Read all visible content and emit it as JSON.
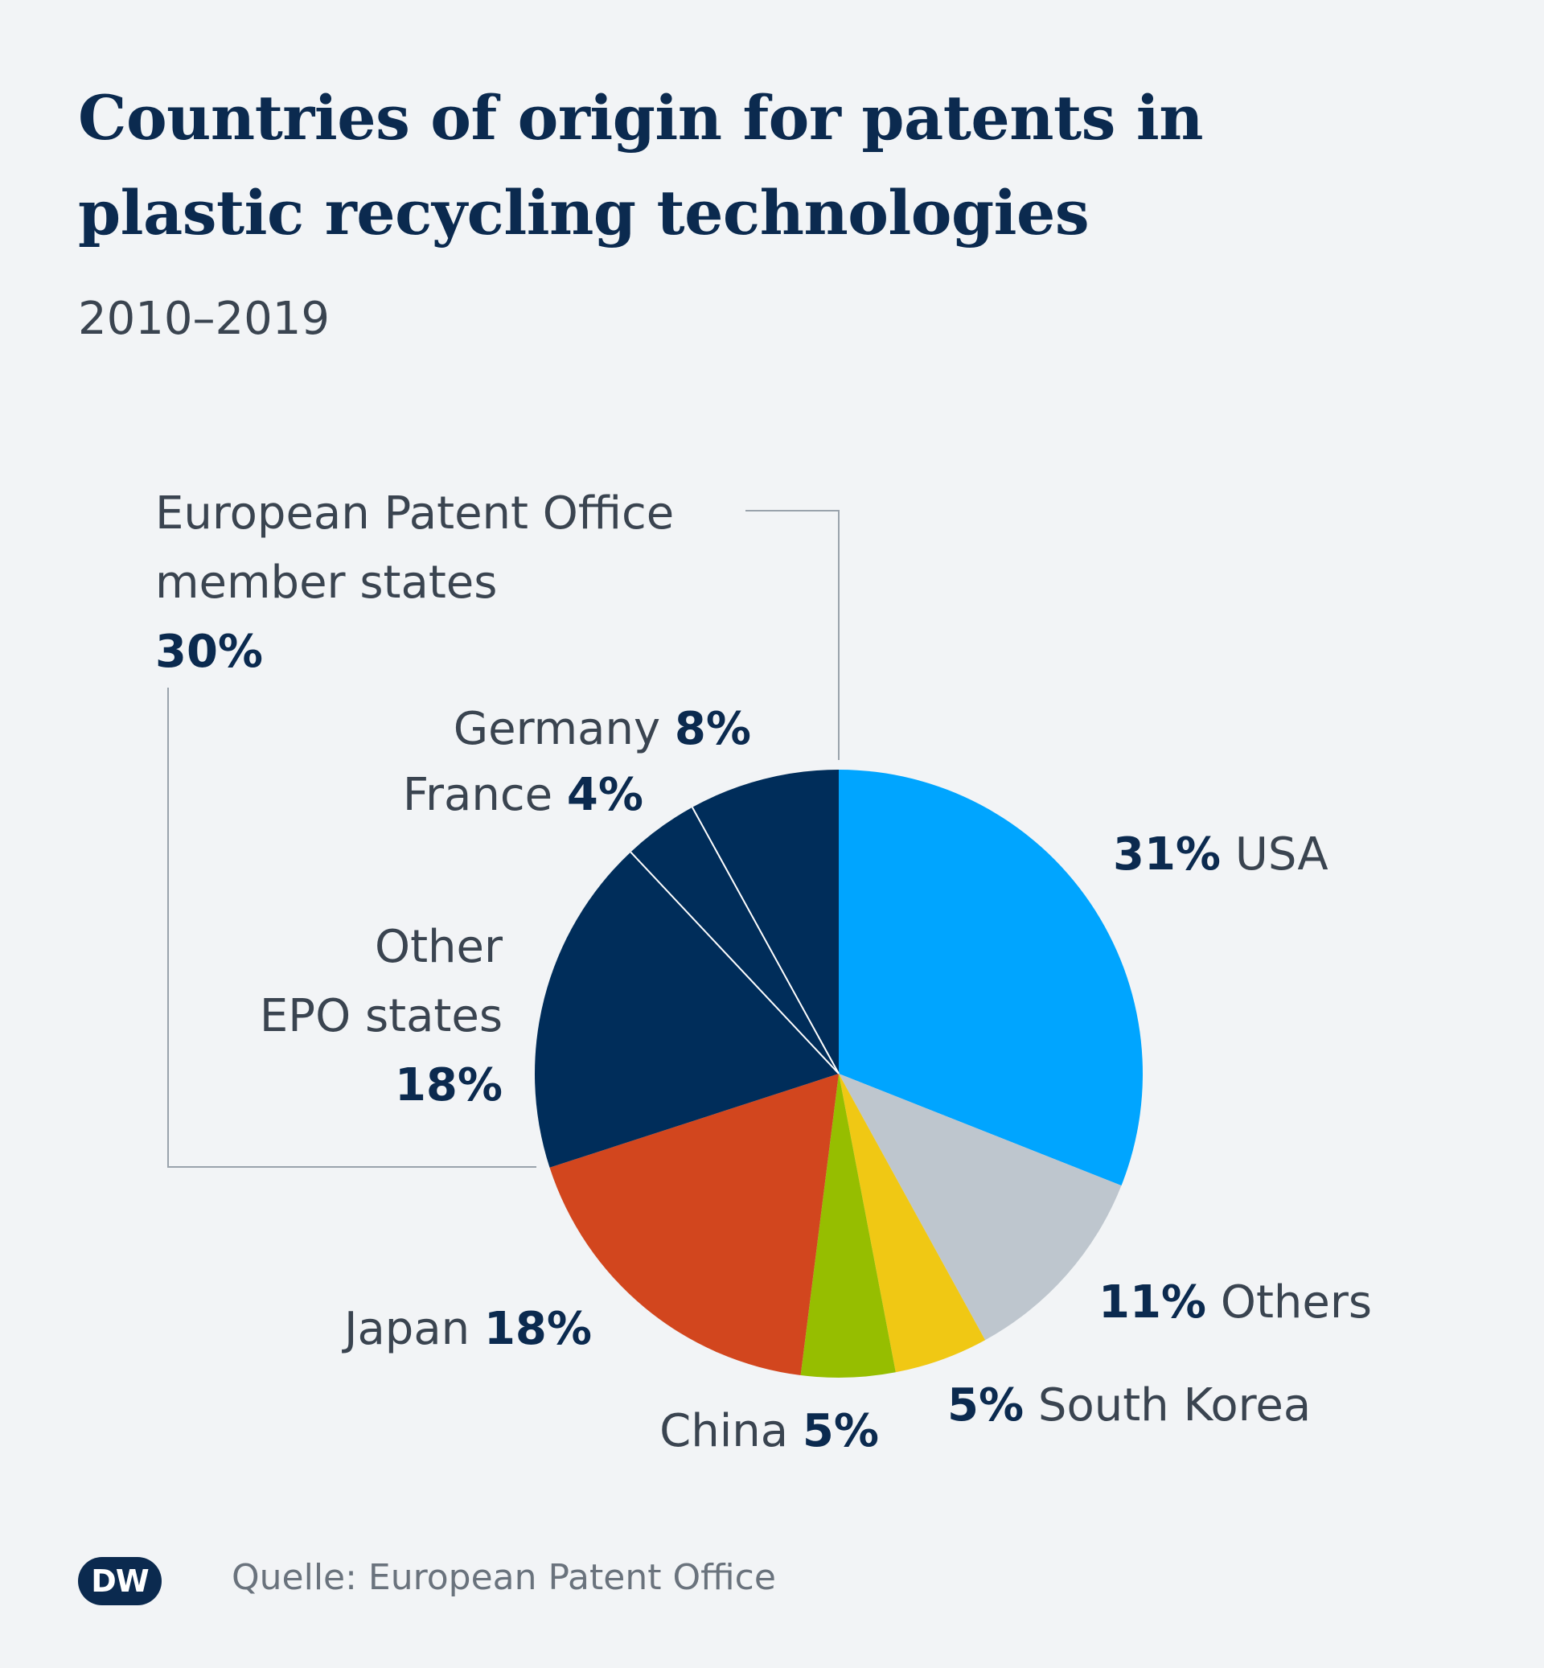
{
  "title": "Countries of origin for patents in plastic recycling technologies",
  "subtitle": "2010–2019",
  "chart_data": {
    "type": "pie",
    "title": "Countries of origin for patents in plastic recycling technologies",
    "subtitle": "2010–2019",
    "unit": "%",
    "slices": [
      {
        "name": "USA",
        "value": 31,
        "label": "31%",
        "color": "#00a5ff"
      },
      {
        "name": "Others",
        "value": 11,
        "label": "11%",
        "color": "#bec6ce"
      },
      {
        "name": "South Korea",
        "value": 5,
        "label": "5%",
        "color": "#f0c814"
      },
      {
        "name": "China",
        "value": 5,
        "label": "5%",
        "color": "#96be00"
      },
      {
        "name": "Japan",
        "value": 18,
        "label": "18%",
        "color": "#d2461e"
      },
      {
        "name": "Other EPO states",
        "value": 18,
        "label": "18%",
        "color": "#002d5a"
      },
      {
        "name": "France",
        "value": 4,
        "label": "4%",
        "color": "#002d5a"
      },
      {
        "name": "Germany",
        "value": 8,
        "label": "8%",
        "color": "#002d5a"
      }
    ],
    "group": {
      "name_line1": "European Patent Office",
      "name_line2": "member states",
      "value": 30,
      "label": "30%"
    }
  },
  "labels": {
    "usa": {
      "name": "USA",
      "pct": "31%"
    },
    "others": {
      "name": "Others",
      "pct": "11%"
    },
    "korea": {
      "name": "South Korea",
      "pct": "5%"
    },
    "china": {
      "name": "China",
      "pct": "5%"
    },
    "japan": {
      "name": "Japan",
      "pct": "18%"
    },
    "other_epo": {
      "line1": "Other",
      "line2": "EPO states",
      "pct": "18%"
    },
    "france": {
      "name": "France",
      "pct": "4%"
    },
    "germany": {
      "name": "Germany",
      "pct": "8%"
    },
    "epo": {
      "line1": "European Patent Office",
      "line2": "member states",
      "pct": "30%"
    }
  },
  "footer": {
    "logo_text": "DW",
    "source": "Quelle: European Patent Office"
  }
}
